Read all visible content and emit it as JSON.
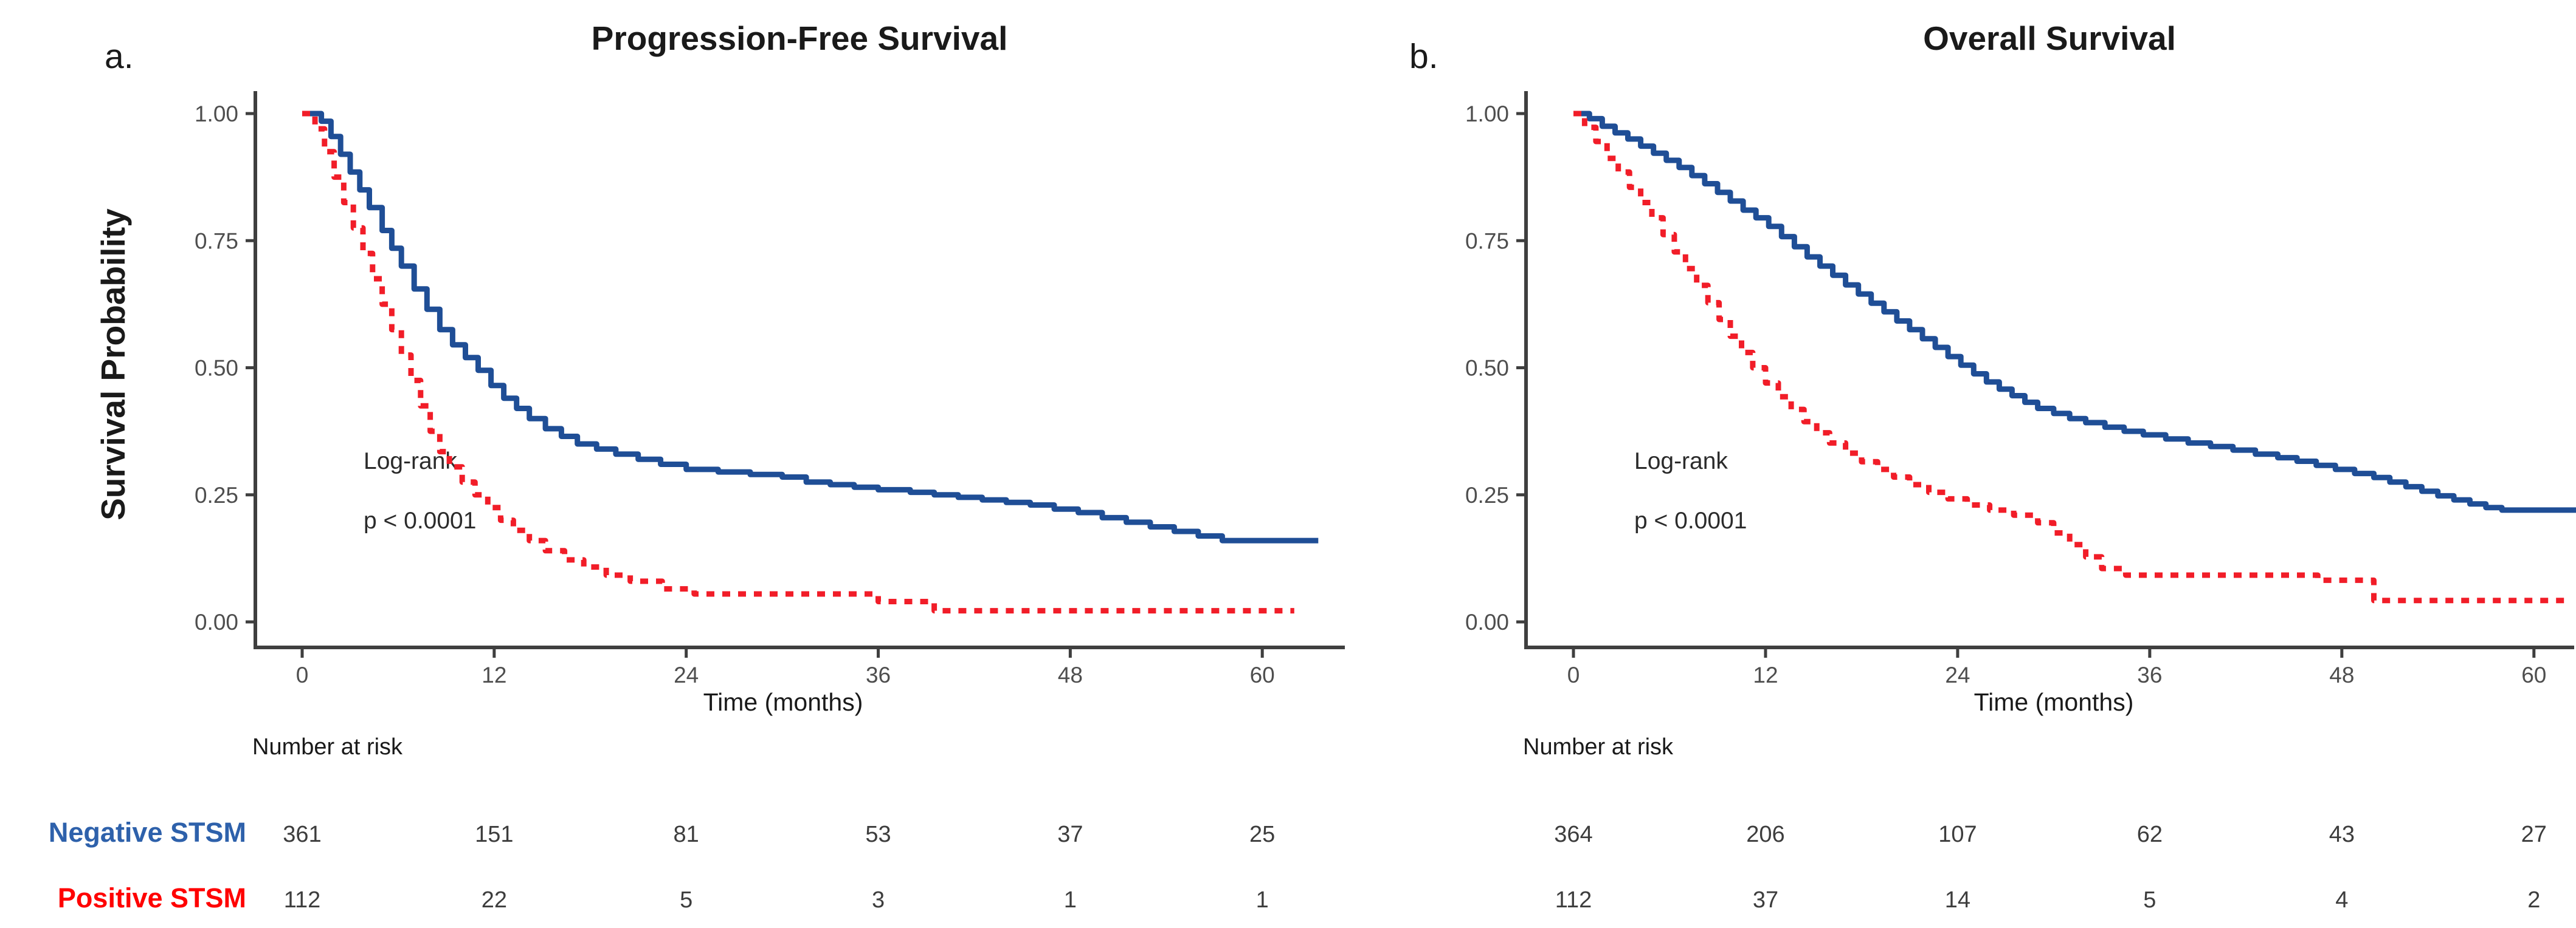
{
  "colors": {
    "curve_blue": "#1f4e96",
    "curve_red": "#f11d28",
    "label_blue": "#2e61ab",
    "label_red": "#ff0000",
    "axis": "#3f3f3f",
    "tick_label": "#4e4e4e",
    "risk_number": "#3d3d3d"
  },
  "figure": {
    "panels": [
      {
        "letter": "a.",
        "title": "Progression-Free Survival",
        "ylabel": "Survival Probability",
        "xlabel": "Time (months)",
        "annotation": {
          "line1": "Log-rank",
          "line2": "p < 0.0001"
        },
        "risk_header": "Number at risk"
      },
      {
        "letter": "b.",
        "title": "Overall Survival",
        "ylabel": "",
        "xlabel": "Time (months)",
        "annotation": {
          "line1": "Log-rank",
          "line2": "p < 0.0001"
        },
        "risk_header": "Number at risk"
      }
    ],
    "risk_labels": [
      {
        "label": "Negative STSM"
      },
      {
        "label": "Positive STSM"
      }
    ]
  },
  "chart_data": [
    {
      "type": "line",
      "subtype": "kaplan-meier-step",
      "title": "Progression-Free Survival",
      "xlabel": "Time (months)",
      "ylabel": "Survival Probability",
      "xlim": [
        0,
        63.5
      ],
      "ylim": [
        0,
        1
      ],
      "x_ticks": [
        0,
        12,
        24,
        36,
        48,
        60
      ],
      "y_ticks": [
        "1.00",
        "0.75",
        "0.50",
        "0.25",
        "0.00"
      ],
      "y_tick_values": [
        1.0,
        0.75,
        0.5,
        0.25,
        0.0
      ],
      "grid": false,
      "legend_position": "none",
      "annotation": "Log-rank p < 0.0001",
      "series": [
        {
          "name": "Negative STSM",
          "style": "solid",
          "points": [
            [
              0,
              1.0
            ],
            [
              1.2,
              0.985
            ],
            [
              1.8,
              0.955
            ],
            [
              2.4,
              0.92
            ],
            [
              3,
              0.885
            ],
            [
              3.6,
              0.85
            ],
            [
              4.2,
              0.815
            ],
            [
              5,
              0.77
            ],
            [
              5.6,
              0.735
            ],
            [
              6.2,
              0.7
            ],
            [
              7,
              0.655
            ],
            [
              7.8,
              0.615
            ],
            [
              8.6,
              0.575
            ],
            [
              9.4,
              0.545
            ],
            [
              10.2,
              0.52
            ],
            [
              11,
              0.495
            ],
            [
              11.8,
              0.465
            ],
            [
              12.6,
              0.44
            ],
            [
              13.4,
              0.42
            ],
            [
              14.2,
              0.4
            ],
            [
              15.2,
              0.38
            ],
            [
              16.2,
              0.365
            ],
            [
              17.2,
              0.35
            ],
            [
              18.4,
              0.34
            ],
            [
              19.6,
              0.33
            ],
            [
              21,
              0.32
            ],
            [
              22.4,
              0.31
            ],
            [
              24,
              0.3
            ],
            [
              26,
              0.295
            ],
            [
              28,
              0.29
            ],
            [
              30,
              0.285
            ],
            [
              31.5,
              0.275
            ],
            [
              33,
              0.27
            ],
            [
              34.5,
              0.265
            ],
            [
              36,
              0.26
            ],
            [
              38,
              0.255
            ],
            [
              39.5,
              0.25
            ],
            [
              41,
              0.245
            ],
            [
              42.5,
              0.24
            ],
            [
              44,
              0.235
            ],
            [
              45.5,
              0.23
            ],
            [
              47,
              0.222
            ],
            [
              48.5,
              0.215
            ],
            [
              50,
              0.205
            ],
            [
              51.5,
              0.196
            ],
            [
              53,
              0.187
            ],
            [
              54.5,
              0.178
            ],
            [
              56,
              0.169
            ],
            [
              57.5,
              0.16
            ],
            [
              63.5,
              0.16
            ]
          ]
        },
        {
          "name": "Positive STSM",
          "style": "dashed",
          "points": [
            [
              0,
              1.0
            ],
            [
              0.8,
              0.97
            ],
            [
              1.4,
              0.925
            ],
            [
              2,
              0.875
            ],
            [
              2.6,
              0.825
            ],
            [
              3.2,
              0.775
            ],
            [
              3.8,
              0.725
            ],
            [
              4.4,
              0.675
            ],
            [
              5,
              0.625
            ],
            [
              5.6,
              0.575
            ],
            [
              6.2,
              0.525
            ],
            [
              6.8,
              0.475
            ],
            [
              7.4,
              0.425
            ],
            [
              8,
              0.375
            ],
            [
              8.6,
              0.335
            ],
            [
              9.2,
              0.305
            ],
            [
              10,
              0.275
            ],
            [
              10.8,
              0.25
            ],
            [
              11.6,
              0.225
            ],
            [
              12.4,
              0.2
            ],
            [
              13.2,
              0.18
            ],
            [
              14.2,
              0.16
            ],
            [
              15.2,
              0.14
            ],
            [
              16.4,
              0.122
            ],
            [
              17.6,
              0.108
            ],
            [
              19,
              0.092
            ],
            [
              20.5,
              0.08
            ],
            [
              22.5,
              0.065
            ],
            [
              24.5,
              0.055
            ],
            [
              36,
              0.04
            ],
            [
              39.5,
              0.022
            ],
            [
              62,
              0.022
            ]
          ]
        }
      ],
      "number_at_risk": {
        "header": "Number at risk",
        "times": [
          0,
          12,
          24,
          36,
          48,
          60
        ],
        "rows": [
          {
            "name": "Negative STSM",
            "values": [
              361,
              151,
              81,
              53,
              37,
              25
            ]
          },
          {
            "name": "Positive STSM",
            "values": [
              112,
              22,
              5,
              3,
              1,
              1
            ]
          }
        ]
      }
    },
    {
      "type": "line",
      "subtype": "kaplan-meier-step",
      "title": "Overall Survival",
      "xlabel": "Time (months)",
      "ylabel": "Survival Probability",
      "xlim": [
        0,
        63.5
      ],
      "ylim": [
        0,
        1
      ],
      "x_ticks": [
        0,
        12,
        24,
        36,
        48,
        60
      ],
      "y_ticks": [
        "1.00",
        "0.75",
        "0.50",
        "0.25",
        "0.00"
      ],
      "y_tick_values": [
        1.0,
        0.75,
        0.5,
        0.25,
        0.0
      ],
      "grid": false,
      "legend_position": "none",
      "annotation": "Log-rank p < 0.0001",
      "series": [
        {
          "name": "Negative STSM",
          "style": "solid",
          "points": [
            [
              0,
              1.0
            ],
            [
              1,
              0.99
            ],
            [
              1.8,
              0.975
            ],
            [
              2.6,
              0.962
            ],
            [
              3.4,
              0.95
            ],
            [
              4.2,
              0.936
            ],
            [
              5,
              0.922
            ],
            [
              5.8,
              0.908
            ],
            [
              6.6,
              0.894
            ],
            [
              7.4,
              0.878
            ],
            [
              8.2,
              0.862
            ],
            [
              9,
              0.845
            ],
            [
              9.8,
              0.828
            ],
            [
              10.6,
              0.81
            ],
            [
              11.4,
              0.795
            ],
            [
              12.2,
              0.778
            ],
            [
              13,
              0.758
            ],
            [
              13.8,
              0.738
            ],
            [
              14.6,
              0.718
            ],
            [
              15.4,
              0.7
            ],
            [
              16.2,
              0.682
            ],
            [
              17,
              0.663
            ],
            [
              17.8,
              0.645
            ],
            [
              18.6,
              0.627
            ],
            [
              19.4,
              0.61
            ],
            [
              20.2,
              0.592
            ],
            [
              21,
              0.575
            ],
            [
              21.8,
              0.557
            ],
            [
              22.6,
              0.54
            ],
            [
              23.4,
              0.522
            ],
            [
              24.2,
              0.505
            ],
            [
              25,
              0.488
            ],
            [
              25.8,
              0.472
            ],
            [
              26.6,
              0.458
            ],
            [
              27.4,
              0.445
            ],
            [
              28.2,
              0.432
            ],
            [
              29,
              0.42
            ],
            [
              30,
              0.41
            ],
            [
              31,
              0.4
            ],
            [
              32,
              0.392
            ],
            [
              33.2,
              0.383
            ],
            [
              34.4,
              0.375
            ],
            [
              35.6,
              0.368
            ],
            [
              37,
              0.36
            ],
            [
              38.4,
              0.352
            ],
            [
              39.8,
              0.345
            ],
            [
              41.2,
              0.338
            ],
            [
              42.6,
              0.33
            ],
            [
              44,
              0.323
            ],
            [
              45.2,
              0.316
            ],
            [
              46.4,
              0.308
            ],
            [
              47.6,
              0.3
            ],
            [
              48.8,
              0.292
            ],
            [
              50,
              0.284
            ],
            [
              51,
              0.275
            ],
            [
              52,
              0.266
            ],
            [
              53,
              0.257
            ],
            [
              54,
              0.248
            ],
            [
              55,
              0.24
            ],
            [
              56,
              0.232
            ],
            [
              57,
              0.225
            ],
            [
              58,
              0.22
            ],
            [
              63.4,
              0.22
            ]
          ]
        },
        {
          "name": "Positive STSM",
          "style": "dashed",
          "points": [
            [
              0,
              1.0
            ],
            [
              0.7,
              0.973
            ],
            [
              1.4,
              0.945
            ],
            [
              2.1,
              0.912
            ],
            [
              2.8,
              0.885
            ],
            [
              3.5,
              0.855
            ],
            [
              4.2,
              0.825
            ],
            [
              4.9,
              0.795
            ],
            [
              5.6,
              0.762
            ],
            [
              6.3,
              0.728
            ],
            [
              7,
              0.695
            ],
            [
              7.7,
              0.662
            ],
            [
              8.4,
              0.628
            ],
            [
              9.1,
              0.595
            ],
            [
              9.8,
              0.562
            ],
            [
              10.5,
              0.53
            ],
            [
              11.2,
              0.5
            ],
            [
              12,
              0.47
            ],
            [
              12.8,
              0.443
            ],
            [
              13.6,
              0.418
            ],
            [
              14.4,
              0.394
            ],
            [
              15.2,
              0.372
            ],
            [
              16,
              0.352
            ],
            [
              17,
              0.332
            ],
            [
              18,
              0.315
            ],
            [
              19,
              0.3
            ],
            [
              20,
              0.285
            ],
            [
              21,
              0.27
            ],
            [
              22.2,
              0.255
            ],
            [
              23.4,
              0.242
            ],
            [
              24.6,
              0.23
            ],
            [
              26,
              0.22
            ],
            [
              27.5,
              0.21
            ],
            [
              29,
              0.195
            ],
            [
              30,
              0.175
            ],
            [
              31,
              0.152
            ],
            [
              32,
              0.128
            ],
            [
              33,
              0.105
            ],
            [
              34.5,
              0.092
            ],
            [
              46.5,
              0.082
            ],
            [
              50,
              0.042
            ],
            [
              62,
              0.042
            ]
          ]
        }
      ],
      "number_at_risk": {
        "header": "Number at risk",
        "times": [
          0,
          12,
          24,
          36,
          48,
          60
        ],
        "rows": [
          {
            "name": "Negative STSM",
            "values": [
              364,
              206,
              107,
              62,
              43,
              27
            ]
          },
          {
            "name": "Positive STSM",
            "values": [
              112,
              37,
              14,
              5,
              4,
              2
            ]
          }
        ]
      }
    }
  ]
}
